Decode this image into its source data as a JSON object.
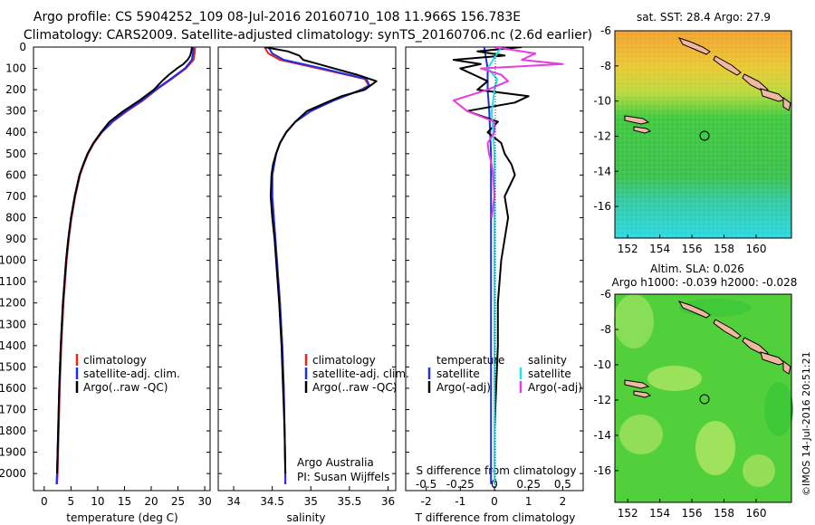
{
  "title": {
    "line1": "Argo profile: CS 5904252_109 08-Jul-2016 20160710_108 11.966S 156.783E",
    "line2": "Climatology: CARS2009. Satellite-adjusted climatology: synTS_20160706.nc (2.6d earlier)"
  },
  "colors": {
    "climatology": "#e8221c",
    "satellite": "#1c2ee8",
    "argo": "#000000",
    "sal_satellite": "#22e0f0",
    "sal_argo": "#e83ce0"
  },
  "depth_axis": {
    "ticks": [
      "0",
      "100",
      "200",
      "300",
      "400",
      "500",
      "600",
      "700",
      "800",
      "900",
      "1000",
      "1100",
      "1200",
      "1300",
      "1400",
      "1500",
      "1600",
      "1700",
      "1800",
      "1900",
      "2000"
    ],
    "min": 0,
    "max": 2080
  },
  "chart_data": [
    {
      "type": "line",
      "name": "temperature",
      "xlabel": "temperature (deg C)",
      "xlim": [
        -2,
        31
      ],
      "xticks": [
        "0",
        "5",
        "10",
        "15",
        "20",
        "25",
        "30"
      ],
      "legend": [
        "climatology",
        "satellite-adj. clim.",
        "Argo(..raw -QC)"
      ],
      "legend_position": "lower-middle",
      "series": [
        {
          "name": "climatology",
          "depth": [
            0,
            30,
            60,
            100,
            150,
            200,
            250,
            300,
            350,
            400,
            450,
            500,
            550,
            600,
            700,
            800,
            900,
            1000,
            1200,
            1400,
            1600,
            1800,
            2000,
            2050
          ],
          "values": [
            28.2,
            28.1,
            27.9,
            26.5,
            23.8,
            21.0,
            18.5,
            15.5,
            12.8,
            10.8,
            9.3,
            8.2,
            7.4,
            6.7,
            5.8,
            5.1,
            4.6,
            4.2,
            3.6,
            3.2,
            2.9,
            2.7,
            2.5,
            2.4
          ]
        },
        {
          "name": "satellite-adj. clim.",
          "depth": [
            0,
            30,
            60,
            100,
            150,
            200,
            250,
            300,
            350,
            400,
            450,
            500,
            550,
            600,
            700,
            800,
            900,
            1000,
            1200,
            1400,
            1600,
            1800,
            2000,
            2050
          ],
          "values": [
            27.9,
            27.8,
            27.6,
            26.3,
            23.6,
            20.8,
            18.3,
            15.3,
            12.7,
            10.7,
            9.2,
            8.1,
            7.3,
            6.6,
            5.7,
            5.0,
            4.5,
            4.1,
            3.5,
            3.1,
            2.8,
            2.6,
            2.4,
            2.3
          ]
        },
        {
          "name": "Argo(..raw -QC)",
          "depth": [
            0,
            20,
            40,
            60,
            80,
            100,
            130,
            160,
            200,
            250,
            300,
            350,
            400,
            450,
            500,
            550,
            600,
            700,
            800,
            900,
            1000,
            1200,
            1400,
            1600,
            1800,
            2000
          ],
          "values": [
            27.6,
            27.5,
            27.3,
            26.8,
            26.0,
            24.8,
            23.3,
            22.0,
            20.5,
            17.8,
            14.8,
            12.2,
            10.6,
            9.2,
            8.1,
            7.3,
            6.6,
            5.7,
            5.0,
            4.5,
            4.1,
            3.5,
            3.1,
            2.8,
            2.6,
            2.4
          ]
        }
      ]
    },
    {
      "type": "line",
      "name": "salinity",
      "xlabel": "salinity",
      "xlim": [
        33.8,
        36.1
      ],
      "xticks": [
        "34",
        "34.5",
        "35",
        "35.5",
        "36"
      ],
      "legend": [
        "climatology",
        "satellite-adj. clim.",
        "Argo(..raw -QC)"
      ],
      "annotation": [
        "Argo Australia",
        "PI: Susan Wijffels"
      ],
      "series": [
        {
          "name": "climatology",
          "depth": [
            0,
            30,
            60,
            100,
            150,
            180,
            200,
            250,
            300,
            350,
            400,
            450,
            500,
            600,
            700,
            800,
            900,
            1000,
            1200,
            1400,
            1600,
            1800,
            2000,
            2050
          ],
          "values": [
            34.4,
            34.45,
            34.6,
            35.1,
            35.7,
            35.75,
            35.65,
            35.3,
            35.0,
            34.8,
            34.68,
            34.6,
            34.55,
            34.5,
            34.5,
            34.52,
            34.54,
            34.56,
            34.6,
            34.63,
            34.65,
            34.66,
            34.67,
            34.67
          ]
        },
        {
          "name": "satellite-adj. clim.",
          "depth": [
            0,
            30,
            60,
            100,
            150,
            180,
            200,
            250,
            300,
            350,
            400,
            450,
            500,
            600,
            700,
            800,
            900,
            1000,
            1200,
            1400,
            1600,
            1800,
            2000,
            2050
          ],
          "values": [
            34.45,
            34.5,
            34.65,
            35.15,
            35.72,
            35.76,
            35.66,
            35.3,
            35.0,
            34.8,
            34.68,
            34.6,
            34.55,
            34.5,
            34.5,
            34.52,
            34.54,
            34.56,
            34.6,
            34.63,
            34.65,
            34.66,
            34.67,
            34.67
          ]
        },
        {
          "name": "Argo(..raw -QC)",
          "depth": [
            0,
            20,
            40,
            60,
            80,
            100,
            130,
            160,
            200,
            230,
            260,
            300,
            350,
            400,
            450,
            500,
            550,
            600,
            700,
            800,
            900,
            1000,
            1200,
            1400,
            1600,
            1800,
            2000
          ],
          "values": [
            34.4,
            34.7,
            34.85,
            34.9,
            35.1,
            35.3,
            35.6,
            35.85,
            35.7,
            35.4,
            35.2,
            34.95,
            34.8,
            34.68,
            34.6,
            34.55,
            34.51,
            34.49,
            34.48,
            34.5,
            34.53,
            34.55,
            34.59,
            34.62,
            34.64,
            34.66,
            34.67
          ]
        }
      ]
    },
    {
      "type": "line",
      "name": "differences",
      "xlabel": "T difference from climatology",
      "xlabel_top": "S difference from climatology",
      "xlim": [
        -2.6,
        2.6
      ],
      "xticks": [
        "-2",
        "-1",
        "0",
        "1",
        "2"
      ],
      "xticks_top": [
        "-0.5",
        "-0.25",
        "0",
        "0.25",
        "0.5"
      ],
      "legend_temperature": [
        "temperature",
        "satellite",
        "Argo(-adj)"
      ],
      "legend_salinity": [
        "salinity",
        "satellite",
        "Argo(-adj)"
      ],
      "series": [
        {
          "name": "T satellite",
          "depth": [
            0,
            100,
            200,
            300,
            500,
            700,
            1000,
            1500,
            2000,
            2050
          ],
          "values": [
            -0.3,
            -0.2,
            -0.2,
            -0.15,
            -0.1,
            -0.1,
            -0.1,
            -0.1,
            -0.1,
            -0.1
          ]
        },
        {
          "name": "T Argo(-adj)",
          "depth": [
            0,
            20,
            40,
            60,
            80,
            100,
            130,
            160,
            200,
            230,
            260,
            300,
            350,
            400,
            450,
            500,
            550,
            600,
            700,
            800,
            900,
            1000,
            1200,
            1400,
            1600,
            1800,
            2000
          ],
          "values": [
            0.8,
            -0.5,
            0.3,
            -1.2,
            -0.4,
            -1.0,
            -0.6,
            -0.2,
            -0.5,
            1.0,
            0.6,
            -0.8,
            0.1,
            -0.2,
            0.2,
            0.3,
            0.5,
            0.6,
            0.3,
            0.4,
            0.3,
            0.2,
            0.1,
            0.1,
            0.05,
            0.0,
            0.0
          ]
        },
        {
          "name": "S satellite",
          "depth": [
            0,
            50,
            100,
            150,
            200,
            300,
            500,
            700,
            1000,
            1500,
            2000,
            2050
          ],
          "values": [
            0.05,
            0.0,
            -0.05,
            0.02,
            0.0,
            -0.02,
            0.0,
            0.0,
            0.0,
            0.0,
            0.0,
            0.0
          ]
        },
        {
          "name": "S Argo(-adj)",
          "depth": [
            0,
            30,
            60,
            80,
            100,
            130,
            160,
            200,
            250,
            300,
            350,
            400,
            450,
            500,
            550,
            600,
            700,
            800
          ],
          "values": [
            0.0,
            0.3,
            0.2,
            0.5,
            -0.1,
            0.05,
            0.1,
            -0.05,
            -0.3,
            -0.2,
            0.0,
            0.0,
            -0.05,
            -0.04,
            -0.02,
            -0.01,
            0.0,
            -0.02
          ]
        }
      ]
    },
    {
      "type": "heatmap",
      "name": "sst_map",
      "title": "sat. SST: 28.4 Argo: 27.9",
      "xlim": [
        151.2,
        162.2
      ],
      "ylim": [
        -17.8,
        -6
      ],
      "xticks": [
        "152",
        "154",
        "156",
        "158",
        "160"
      ],
      "yticks": [
        "-6",
        "-8",
        "-10",
        "-12",
        "-14",
        "-16"
      ],
      "argo_position": {
        "lon": 156.78,
        "lat": -11.97
      }
    },
    {
      "type": "heatmap",
      "name": "sla_map",
      "title": "Altim. SLA: 0.026",
      "title2": "Argo h1000: -0.039 h2000: -0.028",
      "xlim": [
        151.2,
        162.2
      ],
      "ylim": [
        -17.8,
        -6
      ],
      "xticks": [
        "152",
        "154",
        "156",
        "158",
        "160"
      ],
      "yticks": [
        "-6",
        "-8",
        "-10",
        "-12",
        "-14",
        "-16"
      ],
      "argo_position": {
        "lon": 156.78,
        "lat": -11.97
      }
    }
  ],
  "footer": "©IMOS 14-Jul-2016 20:51:21"
}
